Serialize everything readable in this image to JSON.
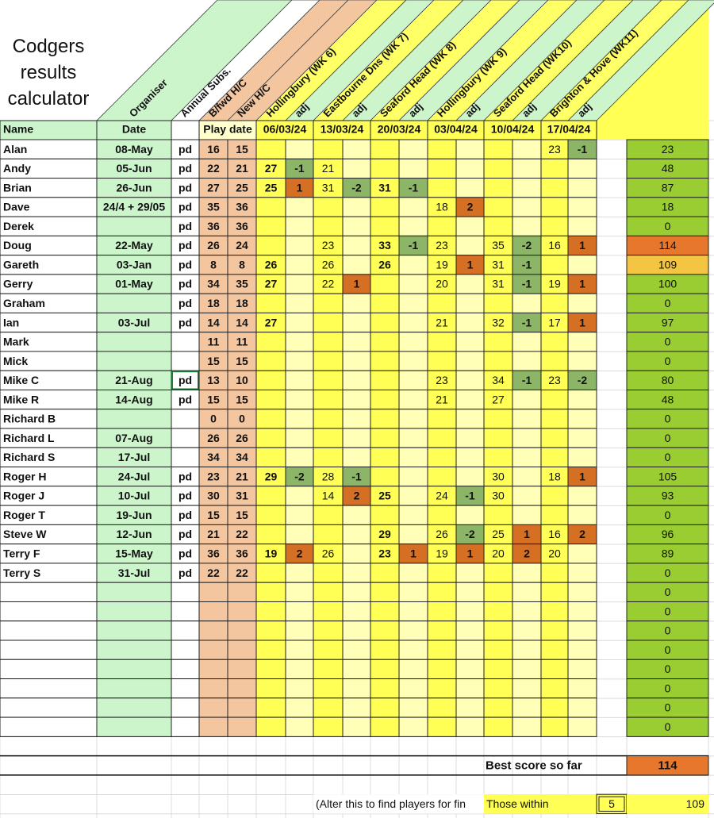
{
  "title": "Codgers results calculator",
  "column_headers": [
    "Organiser",
    "Annual Subs.",
    "B/fwd H/C",
    "New H/C",
    "Hollingbury (WK 6)",
    "adj",
    "Eastbourne Dns (WK 7)",
    "adj",
    "Seaford Head (WK 8)",
    "adj",
    "Hollingbury (WK 9)",
    "adj",
    "Seaford Head (WK10)",
    "adj",
    "Brighton & Hove (WK11)",
    "adj"
  ],
  "header_row": {
    "name": "Name",
    "date": "Date",
    "play_date": "Play date",
    "dates": [
      "06/03/24",
      "13/03/24",
      "20/03/24",
      "03/04/24",
      "10/04/24",
      "17/04/24"
    ]
  },
  "rows": [
    {
      "name": "Alan",
      "date": "08-May",
      "paid": "pd",
      "bfwd_hc": 16,
      "new_hc": 15,
      "scores": [
        null,
        null,
        null,
        null,
        null,
        null,
        null,
        null,
        null,
        null,
        23,
        -1
      ],
      "total": 23
    },
    {
      "name": "Andy",
      "date": "05-Jun",
      "paid": "pd",
      "bfwd_hc": 22,
      "new_hc": 21,
      "scores": [
        27,
        -1,
        21,
        null,
        null,
        null,
        null,
        null,
        null,
        null,
        null,
        null
      ],
      "total": 48
    },
    {
      "name": "Brian",
      "date": "26-Jun",
      "paid": "pd",
      "bfwd_hc": 27,
      "new_hc": 25,
      "scores": [
        25,
        1,
        31,
        -2,
        31,
        -1,
        null,
        null,
        null,
        null,
        null,
        null
      ],
      "total": 87
    },
    {
      "name": "Dave",
      "date": "24/4 + 29/05",
      "paid": "pd",
      "bfwd_hc": 35,
      "new_hc": 36,
      "scores": [
        null,
        null,
        null,
        null,
        null,
        null,
        18,
        2,
        null,
        null,
        null,
        null
      ],
      "total": 18
    },
    {
      "name": "Derek",
      "date": null,
      "paid": "pd",
      "bfwd_hc": 36,
      "new_hc": 36,
      "scores": [
        null,
        null,
        null,
        null,
        null,
        null,
        null,
        null,
        null,
        null,
        null,
        null
      ],
      "total": 0
    },
    {
      "name": "Doug",
      "date": "22-May",
      "paid": "pd",
      "bfwd_hc": 26,
      "new_hc": 24,
      "scores": [
        null,
        null,
        23,
        null,
        33,
        -1,
        23,
        null,
        35,
        -2,
        16,
        1
      ],
      "total": 114,
      "total_color": "#e8772e"
    },
    {
      "name": "Gareth",
      "date": "03-Jan",
      "paid": "pd",
      "bfwd_hc": 8,
      "new_hc": 8,
      "scores": [
        26,
        null,
        26,
        null,
        26,
        null,
        19,
        1,
        31,
        -1,
        null,
        null
      ],
      "total": 109,
      "total_color": "#f4c542"
    },
    {
      "name": "Gerry",
      "date": "01-May",
      "paid": "pd",
      "bfwd_hc": 34,
      "new_hc": 35,
      "scores": [
        27,
        null,
        22,
        1,
        null,
        null,
        20,
        null,
        31,
        -1,
        19,
        1
      ],
      "total": 100
    },
    {
      "name": "Graham",
      "date": null,
      "paid": "pd",
      "bfwd_hc": 18,
      "new_hc": 18,
      "scores": [
        null,
        null,
        null,
        null,
        null,
        null,
        null,
        null,
        null,
        null,
        null,
        null
      ],
      "total": 0
    },
    {
      "name": "Ian",
      "date": "03-Jul",
      "paid": "pd",
      "bfwd_hc": 14,
      "new_hc": 14,
      "scores": [
        27,
        null,
        null,
        null,
        null,
        null,
        21,
        null,
        32,
        -1,
        17,
        1
      ],
      "total": 97
    },
    {
      "name": "Mark",
      "date": null,
      "paid": null,
      "bfwd_hc": 11,
      "new_hc": 11,
      "scores": [
        null,
        null,
        null,
        null,
        null,
        null,
        null,
        null,
        null,
        null,
        null,
        null
      ],
      "total": 0
    },
    {
      "name": "Mick",
      "date": null,
      "paid": null,
      "bfwd_hc": 15,
      "new_hc": 15,
      "scores": [
        null,
        null,
        null,
        null,
        null,
        null,
        null,
        null,
        null,
        null,
        null,
        null
      ],
      "total": 0
    },
    {
      "name": "Mike C",
      "date": "21-Aug",
      "paid": "pd",
      "bfwd_hc": 13,
      "new_hc": 10,
      "scores": [
        null,
        null,
        null,
        null,
        null,
        null,
        23,
        null,
        34,
        -1,
        23,
        -2
      ],
      "total": 80,
      "selected": "paid"
    },
    {
      "name": "Mike R",
      "date": "14-Aug",
      "paid": "pd",
      "bfwd_hc": 15,
      "new_hc": 15,
      "scores": [
        null,
        null,
        null,
        null,
        null,
        null,
        21,
        null,
        27,
        null,
        null,
        null
      ],
      "total": 48
    },
    {
      "name": "Richard B",
      "date": null,
      "paid": null,
      "bfwd_hc": 0,
      "new_hc": 0,
      "scores": [
        null,
        null,
        null,
        null,
        null,
        null,
        null,
        null,
        null,
        null,
        null,
        null
      ],
      "total": 0
    },
    {
      "name": "Richard L",
      "date": "07-Aug",
      "paid": null,
      "bfwd_hc": 26,
      "new_hc": 26,
      "scores": [
        null,
        null,
        null,
        null,
        null,
        null,
        null,
        null,
        null,
        null,
        null,
        null
      ],
      "total": 0
    },
    {
      "name": "Richard S",
      "date": "17-Jul",
      "paid": null,
      "bfwd_hc": 34,
      "new_hc": 34,
      "scores": [
        null,
        null,
        null,
        null,
        null,
        null,
        null,
        null,
        null,
        null,
        null,
        null
      ],
      "total": 0
    },
    {
      "name": "Roger H",
      "date": "24-Jul",
      "paid": "pd",
      "bfwd_hc": 23,
      "new_hc": 21,
      "scores": [
        29,
        -2,
        28,
        -1,
        null,
        null,
        null,
        null,
        30,
        null,
        18,
        1
      ],
      "total": 105
    },
    {
      "name": "Roger J",
      "date": "10-Jul",
      "paid": "pd",
      "bfwd_hc": 30,
      "new_hc": 31,
      "scores": [
        null,
        null,
        14,
        2,
        25,
        null,
        24,
        -1,
        30,
        null,
        null,
        null
      ],
      "total": 93
    },
    {
      "name": "Roger T",
      "date": "19-Jun",
      "paid": "pd",
      "bfwd_hc": 15,
      "new_hc": 15,
      "scores": [
        null,
        null,
        null,
        null,
        null,
        null,
        null,
        null,
        null,
        null,
        null,
        null
      ],
      "total": 0
    },
    {
      "name": "Steve W",
      "date": "12-Jun",
      "paid": "pd",
      "bfwd_hc": 21,
      "new_hc": 22,
      "scores": [
        null,
        null,
        null,
        null,
        29,
        null,
        26,
        -2,
        25,
        1,
        16,
        2
      ],
      "total": 96
    },
    {
      "name": "Terry F",
      "date": "15-May",
      "paid": "pd",
      "bfwd_hc": 36,
      "new_hc": 36,
      "scores": [
        19,
        2,
        26,
        null,
        23,
        1,
        19,
        1,
        20,
        2,
        20,
        null
      ],
      "total": 89
    },
    {
      "name": "Terry S",
      "date": "31-Jul",
      "paid": "pd",
      "bfwd_hc": 22,
      "new_hc": 22,
      "scores": [
        null,
        null,
        null,
        null,
        null,
        null,
        null,
        null,
        null,
        null,
        null,
        null
      ],
      "total": 0
    },
    {
      "total": 0
    },
    {
      "total": 0
    },
    {
      "total": 0
    },
    {
      "total": 0
    },
    {
      "total": 0
    },
    {
      "total": 0
    },
    {
      "total": 0
    },
    {
      "total": 0
    }
  ],
  "best": {
    "label": "Best score so far",
    "value": 114
  },
  "filter": {
    "note": "(Alter this to find players for fin",
    "label": "Those within",
    "within": 5,
    "threshold": 109
  }
}
